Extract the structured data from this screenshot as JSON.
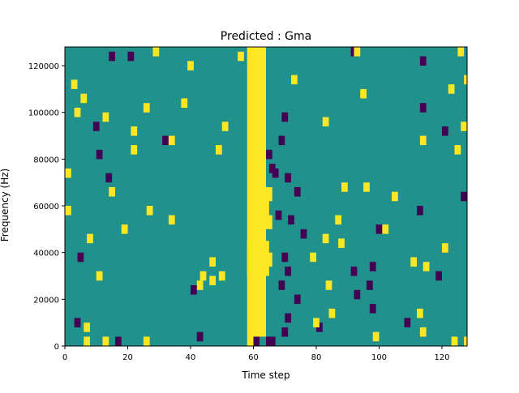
{
  "chart_data": {
    "type": "heatmap",
    "title": "Predicted : Gma",
    "xlabel": "Time step",
    "ylabel": "Frequency (Hz)",
    "xlim": [
      0,
      128
    ],
    "ylim": [
      0,
      128000
    ],
    "x_ticks": [
      0,
      20,
      40,
      60,
      80,
      100,
      120
    ],
    "y_ticks": [
      0,
      20000,
      40000,
      60000,
      80000,
      100000,
      120000
    ],
    "x_tick_labels": [
      "0",
      "20",
      "40",
      "60",
      "80",
      "100",
      "120"
    ],
    "y_tick_labels": [
      "0",
      "20000",
      "40000",
      "60000",
      "80000",
      "100000",
      "120000"
    ],
    "value_levels": [
      -1,
      0,
      1
    ],
    "colormap": {
      "-1": "#440154",
      "0": "#21918c",
      "1": "#fde725"
    },
    "background_value": 0,
    "cells_note": "each cell = [x0, x1, y0, y1, value] in data units (time step, Hz)",
    "cells": [
      [
        58,
        64,
        0,
        128000,
        1
      ],
      [
        59,
        64,
        65000,
        70000,
        1
      ],
      [
        58,
        65,
        30000,
        45000,
        1
      ],
      [
        59,
        66,
        62000,
        68000,
        1
      ],
      [
        60,
        66,
        50000,
        56000,
        1
      ],
      [
        61,
        65,
        56000,
        64000,
        1
      ],
      [
        61,
        66,
        34000,
        40000,
        1
      ],
      [
        60,
        62,
        110000,
        118000,
        1
      ],
      [
        61,
        63,
        118000,
        122000,
        1
      ],
      [
        59,
        62,
        97000,
        104000,
        1
      ],
      [
        60,
        62,
        88000,
        96000,
        1
      ],
      [
        60,
        62,
        0,
        4000,
        -1
      ],
      [
        62,
        64,
        0,
        4000,
        0
      ],
      [
        64,
        67,
        0,
        4000,
        -1
      ],
      [
        0,
        2,
        72000,
        76000,
        1
      ],
      [
        0,
        2,
        56000,
        60000,
        1
      ],
      [
        26,
        28,
        56000,
        60000,
        1
      ],
      [
        10,
        12,
        28000,
        32000,
        1
      ],
      [
        33,
        35,
        52000,
        56000,
        1
      ],
      [
        43,
        45,
        28000,
        32000,
        1
      ],
      [
        42,
        44,
        24000,
        28000,
        1
      ],
      [
        40,
        42,
        22000,
        26000,
        -1
      ],
      [
        46,
        48,
        26000,
        30000,
        1
      ],
      [
        49,
        51,
        28000,
        32000,
        1
      ],
      [
        46,
        48,
        34000,
        38000,
        1
      ],
      [
        31,
        33,
        86000,
        90000,
        -1
      ],
      [
        33,
        35,
        86000,
        90000,
        1
      ],
      [
        21,
        23,
        90000,
        94000,
        1
      ],
      [
        21,
        23,
        82000,
        86000,
        1
      ],
      [
        48,
        50,
        82000,
        86000,
        1
      ],
      [
        50,
        52,
        92000,
        96000,
        1
      ],
      [
        12,
        14,
        96000,
        100000,
        1
      ],
      [
        25,
        27,
        100000,
        104000,
        1
      ],
      [
        3,
        5,
        98000,
        102000,
        1
      ],
      [
        5,
        7,
        104000,
        108000,
        1
      ],
      [
        2,
        4,
        110000,
        114000,
        1
      ],
      [
        37,
        39,
        102000,
        106000,
        1
      ],
      [
        39,
        41,
        118000,
        122000,
        1
      ],
      [
        20,
        22,
        122000,
        126000,
        -1
      ],
      [
        14,
        16,
        122000,
        126000,
        -1
      ],
      [
        28,
        30,
        124000,
        128000,
        1
      ],
      [
        55,
        57,
        122000,
        126000,
        1
      ],
      [
        72,
        74,
        112000,
        116000,
        1
      ],
      [
        69,
        71,
        96000,
        100000,
        -1
      ],
      [
        68,
        70,
        86000,
        90000,
        -1
      ],
      [
        64,
        66,
        80000,
        84000,
        -1
      ],
      [
        65,
        67,
        74000,
        78000,
        -1
      ],
      [
        70,
        72,
        70000,
        74000,
        -1
      ],
      [
        73,
        75,
        64000,
        68000,
        -1
      ],
      [
        71,
        73,
        52000,
        56000,
        -1
      ],
      [
        75,
        77,
        46000,
        50000,
        -1
      ],
      [
        69,
        71,
        36000,
        40000,
        -1
      ],
      [
        70,
        72,
        30000,
        34000,
        -1
      ],
      [
        68,
        70,
        24000,
        28000,
        -1
      ],
      [
        73,
        75,
        18000,
        22000,
        -1
      ],
      [
        70,
        72,
        10000,
        14000,
        -1
      ],
      [
        69,
        71,
        4000,
        8000,
        -1
      ],
      [
        78,
        80,
        36000,
        40000,
        1
      ],
      [
        83,
        85,
        24000,
        28000,
        1
      ],
      [
        88,
        90,
        66000,
        70000,
        1
      ],
      [
        82,
        84,
        94000,
        98000,
        1
      ],
      [
        94,
        96,
        106000,
        110000,
        1
      ],
      [
        95,
        97,
        66000,
        70000,
        1
      ],
      [
        99,
        101,
        48000,
        52000,
        -1
      ],
      [
        101,
        103,
        48000,
        52000,
        1
      ],
      [
        97,
        99,
        32000,
        36000,
        -1
      ],
      [
        96,
        98,
        24000,
        28000,
        -1
      ],
      [
        84,
        86,
        12000,
        16000,
        1
      ],
      [
        80,
        82,
        6000,
        10000,
        -1
      ],
      [
        87,
        89,
        42000,
        46000,
        1
      ],
      [
        91,
        93,
        30000,
        34000,
        -1
      ],
      [
        92,
        94,
        20000,
        24000,
        -1
      ],
      [
        97,
        99,
        14000,
        18000,
        -1
      ],
      [
        104,
        106,
        62000,
        66000,
        1
      ],
      [
        112,
        114,
        56000,
        60000,
        -1
      ],
      [
        113,
        115,
        100000,
        104000,
        -1
      ],
      [
        113,
        115,
        86000,
        90000,
        1
      ],
      [
        110,
        112,
        34000,
        38000,
        1
      ],
      [
        114,
        116,
        32000,
        36000,
        1
      ],
      [
        118,
        120,
        28000,
        32000,
        -1
      ],
      [
        120,
        122,
        40000,
        44000,
        1
      ],
      [
        120,
        122,
        90000,
        94000,
        -1
      ],
      [
        124,
        126,
        82000,
        86000,
        1
      ],
      [
        122,
        124,
        108000,
        112000,
        1
      ],
      [
        126,
        128,
        62000,
        66000,
        -1
      ],
      [
        126,
        128,
        92000,
        96000,
        1
      ],
      [
        127,
        129,
        112000,
        116000,
        1
      ],
      [
        125,
        127,
        124000,
        128000,
        1
      ],
      [
        113,
        115,
        120000,
        124000,
        -1
      ],
      [
        91,
        93,
        124000,
        128000,
        -1
      ],
      [
        92,
        94,
        124000,
        128000,
        1
      ],
      [
        127,
        129,
        0,
        4000,
        1
      ],
      [
        123,
        125,
        0,
        4000,
        1
      ],
      [
        108,
        110,
        8000,
        12000,
        -1
      ],
      [
        112,
        114,
        12000,
        16000,
        1
      ],
      [
        113,
        115,
        4000,
        8000,
        1
      ],
      [
        79,
        81,
        8000,
        12000,
        1
      ],
      [
        82,
        84,
        44000,
        48000,
        1
      ],
      [
        86,
        88,
        52000,
        56000,
        1
      ],
      [
        98,
        100,
        2000,
        6000,
        1
      ],
      [
        67,
        69,
        54000,
        58000,
        -1
      ],
      [
        66,
        68,
        72000,
        76000,
        -1
      ],
      [
        6,
        8,
        0,
        4000,
        1
      ],
      [
        12,
        14,
        0,
        4000,
        1
      ],
      [
        25,
        27,
        0,
        4000,
        1
      ],
      [
        16,
        18,
        0,
        4000,
        -1
      ],
      [
        42,
        44,
        2000,
        6000,
        -1
      ],
      [
        3,
        5,
        8000,
        12000,
        -1
      ],
      [
        6,
        8,
        6000,
        10000,
        1
      ],
      [
        4,
        6,
        36000,
        40000,
        -1
      ],
      [
        7,
        9,
        44000,
        48000,
        1
      ],
      [
        14,
        16,
        64000,
        68000,
        1
      ],
      [
        18,
        20,
        48000,
        52000,
        1
      ],
      [
        9,
        11,
        92000,
        96000,
        -1
      ],
      [
        10,
        12,
        80000,
        84000,
        -1
      ],
      [
        13,
        15,
        70000,
        74000,
        -1
      ]
    ]
  }
}
